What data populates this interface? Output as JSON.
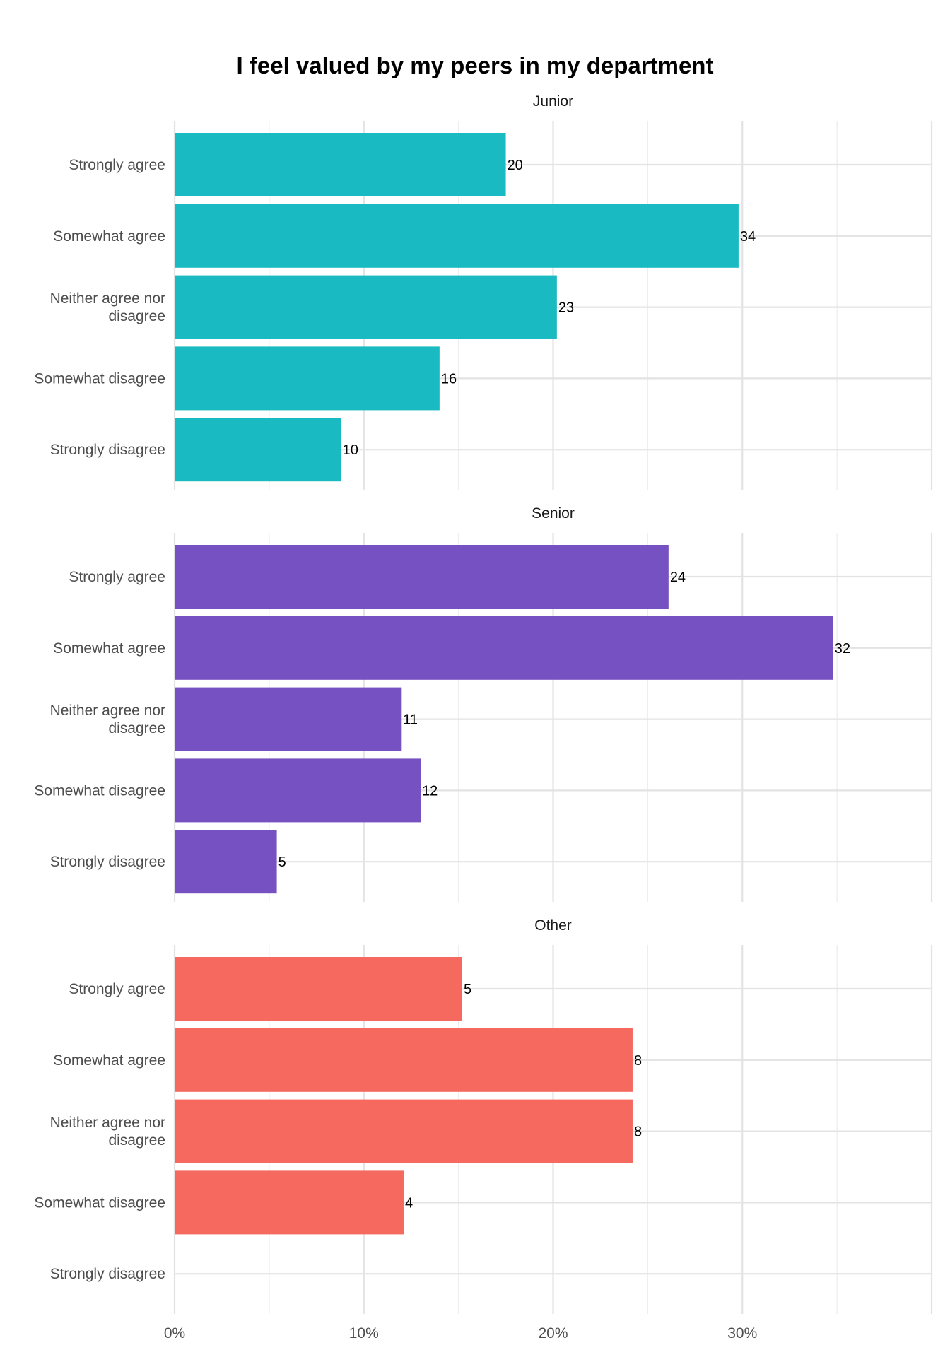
{
  "chart_data": {
    "type": "bar",
    "orientation": "horizontal",
    "title": "I feel valued by my peers in my department",
    "xlabel": "",
    "ylabel": "",
    "x_ticks": [
      "0%",
      "10%",
      "20%",
      "30%"
    ],
    "xlim": [
      0,
      40
    ],
    "grid": true,
    "categories": [
      "Strongly agree",
      "Somewhat agree",
      "Neither agree nor disagree",
      "Somewhat disagree",
      "Strongly disagree"
    ],
    "category_lines": [
      [
        "Strongly agree"
      ],
      [
        "Somewhat agree"
      ],
      [
        "Neither agree nor",
        "disagree"
      ],
      [
        "Somewhat disagree"
      ],
      [
        "Strongly disagree"
      ]
    ],
    "panels": [
      {
        "name": "Junior",
        "color": "#19BAC2",
        "counts": [
          20,
          34,
          23,
          16,
          10
        ],
        "percent": [
          17.5,
          29.8,
          20.2,
          14.0,
          8.8
        ]
      },
      {
        "name": "Senior",
        "color": "#7651C1",
        "counts": [
          24,
          32,
          11,
          12,
          5
        ],
        "percent": [
          26.1,
          34.8,
          12.0,
          13.0,
          5.4
        ]
      },
      {
        "name": "Other",
        "color": "#F5695F",
        "counts": [
          5,
          8,
          8,
          4,
          null
        ],
        "percent": [
          15.2,
          24.2,
          24.2,
          12.1,
          0
        ]
      }
    ]
  }
}
